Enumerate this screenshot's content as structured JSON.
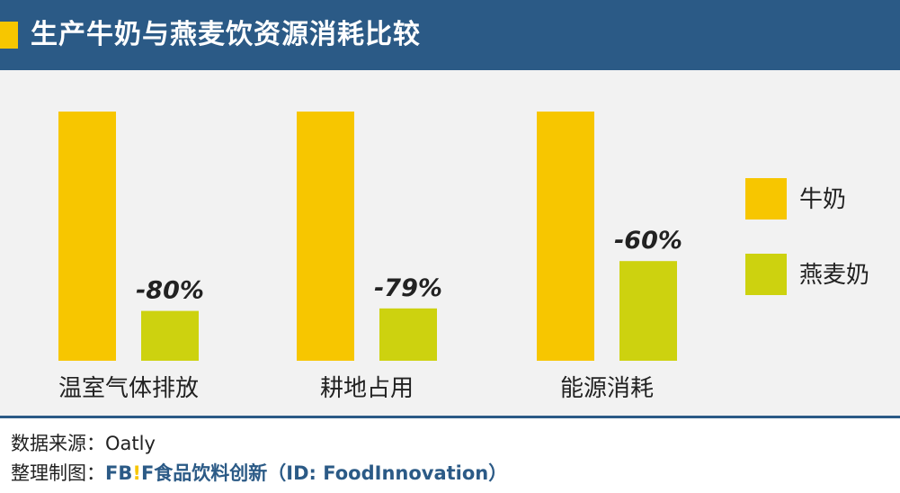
{
  "header": {
    "title": "生产牛奶与燕麦饮资源消耗比较"
  },
  "colors": {
    "header_bg": "#2b5a86",
    "accent": "#f7c600",
    "plot_bg": "#f2f2f2",
    "milk": "#f7c600",
    "oat_milk": "#cdd20f"
  },
  "footer": {
    "source": "数据来源：Oatly",
    "credit_prefix": "整理制图：",
    "credit_brand_a": "FB",
    "credit_brand_bang": "!",
    "credit_brand_b": "F",
    "credit_rest": "食品饮料创新（ID: FoodInnovation）"
  },
  "chart_data": {
    "type": "bar",
    "categories": [
      "温室气体排放",
      "耕地占用",
      "能源消耗"
    ],
    "series": [
      {
        "name": "牛奶",
        "values": [
          100,
          100,
          100
        ],
        "color": "#f7c600"
      },
      {
        "name": "燕麦奶",
        "values": [
          20,
          21,
          40
        ],
        "color": "#cdd20f"
      }
    ],
    "data_labels": [
      "-80%",
      "-79%",
      "-60%"
    ],
    "ylim": [
      0,
      100
    ],
    "grid": false,
    "legend_position": "right"
  }
}
